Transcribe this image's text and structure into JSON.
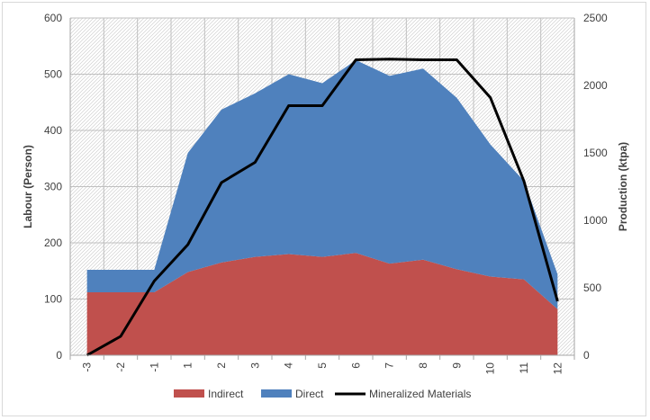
{
  "chart_data": {
    "type": "area",
    "categories": [
      "-3",
      "-2",
      "-1",
      "1",
      "2",
      "3",
      "4",
      "5",
      "6",
      "7",
      "8",
      "9",
      "10",
      "11",
      "12"
    ],
    "series": [
      {
        "name": "Indirect",
        "kind": "stacked-area",
        "axis": "left",
        "color": "#c0504d",
        "values": [
          112,
          112,
          112,
          148,
          165,
          175,
          180,
          175,
          182,
          163,
          170,
          153,
          140,
          135,
          82
        ]
      },
      {
        "name": "Direct",
        "kind": "stacked-area",
        "axis": "left",
        "color": "#4f81bd",
        "values": [
          40,
          40,
          40,
          212,
          272,
          291,
          320,
          309,
          343,
          334,
          340,
          305,
          235,
          175,
          62
        ]
      },
      {
        "name": "Mineralized Materials",
        "kind": "line",
        "axis": "right",
        "color": "#000000",
        "values": [
          0,
          140,
          550,
          820,
          1280,
          1430,
          1850,
          1850,
          2190,
          2195,
          2190,
          2190,
          1910,
          1290,
          400
        ]
      }
    ],
    "ylabel": "Labour (Person)",
    "y2label": "Production (ktpa)",
    "xlabel": "",
    "ylim": [
      0,
      600
    ],
    "y2lim": [
      0,
      2500
    ],
    "yticks": [
      "0",
      "100",
      "200",
      "300",
      "400",
      "500",
      "600"
    ],
    "y2ticks": [
      "0",
      "500",
      "1000",
      "1500",
      "2000",
      "2500"
    ],
    "grid": true,
    "legend_position": "bottom"
  }
}
